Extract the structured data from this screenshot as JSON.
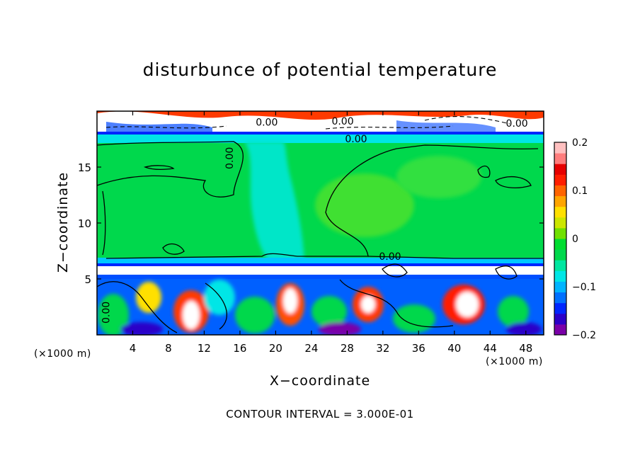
{
  "chart_data": {
    "type": "heatmap",
    "title": "disturbunce of potential temperature",
    "xlabel": "X−coordinate",
    "ylabel": "Z−coordinate",
    "x_unit_left": "(×1000 m)",
    "x_unit_right": "(×1000 m)",
    "xlim": [
      0,
      50
    ],
    "ylim": [
      0,
      20
    ],
    "x_ticks": [
      4,
      8,
      12,
      16,
      20,
      24,
      28,
      32,
      36,
      40,
      44,
      48
    ],
    "y_ticks": [
      5,
      10,
      15
    ],
    "colorbar": {
      "range": [
        -0.2,
        0.2
      ],
      "ticks": [
        "0.2",
        "0.1",
        "0",
        "−0.1",
        "−0.2"
      ],
      "colors": [
        "#7a00a8",
        "#2b00c8",
        "#0026ff",
        "#0070ff",
        "#00b4ff",
        "#00e6e6",
        "#00e6a0",
        "#00d84c",
        "#00dd30",
        "#70e000",
        "#cce600",
        "#ffe000",
        "#ffa500",
        "#ff6400",
        "#ff1e00",
        "#e60000",
        "#ff7d7d",
        "#ffc0c0"
      ]
    },
    "contour_labels": [
      "0.00",
      "0.00",
      "0.00",
      "0.00",
      "0.00",
      "0.00",
      "0.00"
    ],
    "footer": "CONTOUR INTERVAL = 3.000E-01"
  }
}
